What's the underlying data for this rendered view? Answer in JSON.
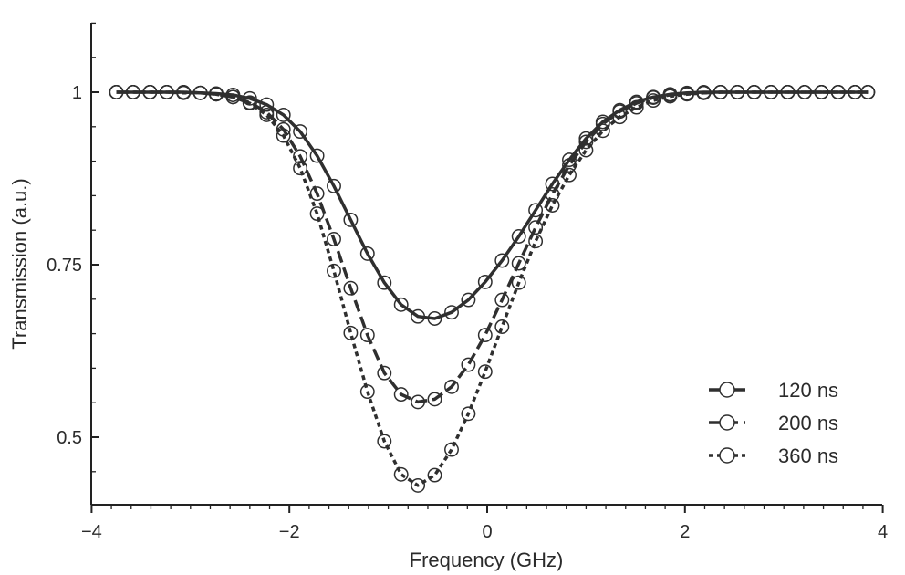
{
  "chart_data": {
    "type": "line",
    "title": "",
    "xlabel": "Frequency (GHz)",
    "ylabel": "Transmission (a.u.)",
    "xlim": [
      -4,
      4
    ],
    "ylim": [
      0.4,
      1.1
    ],
    "xticks": [
      -4,
      -2,
      0,
      2,
      4
    ],
    "xtick_labels": [
      "−4",
      "−2",
      "0",
      "2",
      "4"
    ],
    "yticks": [
      0.5,
      0.75,
      1
    ],
    "ytick_labels": [
      "0.5",
      "0.75",
      "1"
    ],
    "grid": false,
    "legend_position": "bottom-right",
    "line_color": "#2f2f2f",
    "x": [
      -3.75,
      -3.58,
      -3.41,
      -3.24,
      -3.07,
      -2.9,
      -2.74,
      -2.57,
      -2.4,
      -2.23,
      -2.06,
      -1.89,
      -1.72,
      -1.55,
      -1.38,
      -1.21,
      -1.04,
      -0.87,
      -0.7,
      -0.53,
      -0.36,
      -0.19,
      -0.02,
      0.15,
      0.32,
      0.49,
      0.66,
      0.83,
      1.0,
      1.17,
      1.34,
      1.51,
      1.68,
      1.85,
      2.02,
      2.19,
      2.36,
      2.53,
      2.7,
      2.87,
      3.04,
      3.21,
      3.38,
      3.55,
      3.72,
      3.85
    ],
    "series": [
      {
        "name": "120 ns",
        "line_style": "solid",
        "values": [
          1.0,
          1.0,
          1.0,
          1.0,
          1.0,
          0.999,
          0.998,
          0.996,
          0.991,
          0.982,
          0.967,
          0.943,
          0.908,
          0.864,
          0.815,
          0.766,
          0.724,
          0.692,
          0.675,
          0.672,
          0.681,
          0.699,
          0.725,
          0.756,
          0.791,
          0.829,
          0.867,
          0.902,
          0.933,
          0.957,
          0.974,
          0.986,
          0.993,
          0.997,
          0.999,
          1.0,
          1.0,
          1.0,
          1.0,
          1.0,
          1.0,
          1.0,
          1.0,
          1.0,
          1.0,
          1.0
        ]
      },
      {
        "name": "200 ns",
        "line_style": "dashed",
        "values": [
          1.0,
          1.0,
          1.0,
          1.0,
          1.0,
          0.999,
          0.997,
          0.993,
          0.985,
          0.971,
          0.946,
          0.907,
          0.853,
          0.787,
          0.716,
          0.648,
          0.593,
          0.562,
          0.551,
          0.555,
          0.573,
          0.605,
          0.648,
          0.699,
          0.752,
          0.804,
          0.852,
          0.894,
          0.928,
          0.954,
          0.972,
          0.984,
          0.992,
          0.996,
          0.998,
          0.999,
          1.0,
          1.0,
          1.0,
          1.0,
          1.0,
          1.0,
          1.0,
          1.0,
          1.0,
          1.0
        ]
      },
      {
        "name": "360 ns",
        "line_style": "dotted",
        "values": [
          1.0,
          1.0,
          1.0,
          1.0,
          0.999,
          0.999,
          0.997,
          0.993,
          0.984,
          0.967,
          0.937,
          0.89,
          0.824,
          0.741,
          0.651,
          0.566,
          0.494,
          0.446,
          0.43,
          0.445,
          0.482,
          0.534,
          0.595,
          0.66,
          0.724,
          0.784,
          0.836,
          0.88,
          0.916,
          0.944,
          0.964,
          0.978,
          0.988,
          0.994,
          0.997,
          0.999,
          1.0,
          1.0,
          1.0,
          1.0,
          1.0,
          1.0,
          1.0,
          1.0,
          1.0,
          1.0
        ]
      }
    ]
  }
}
